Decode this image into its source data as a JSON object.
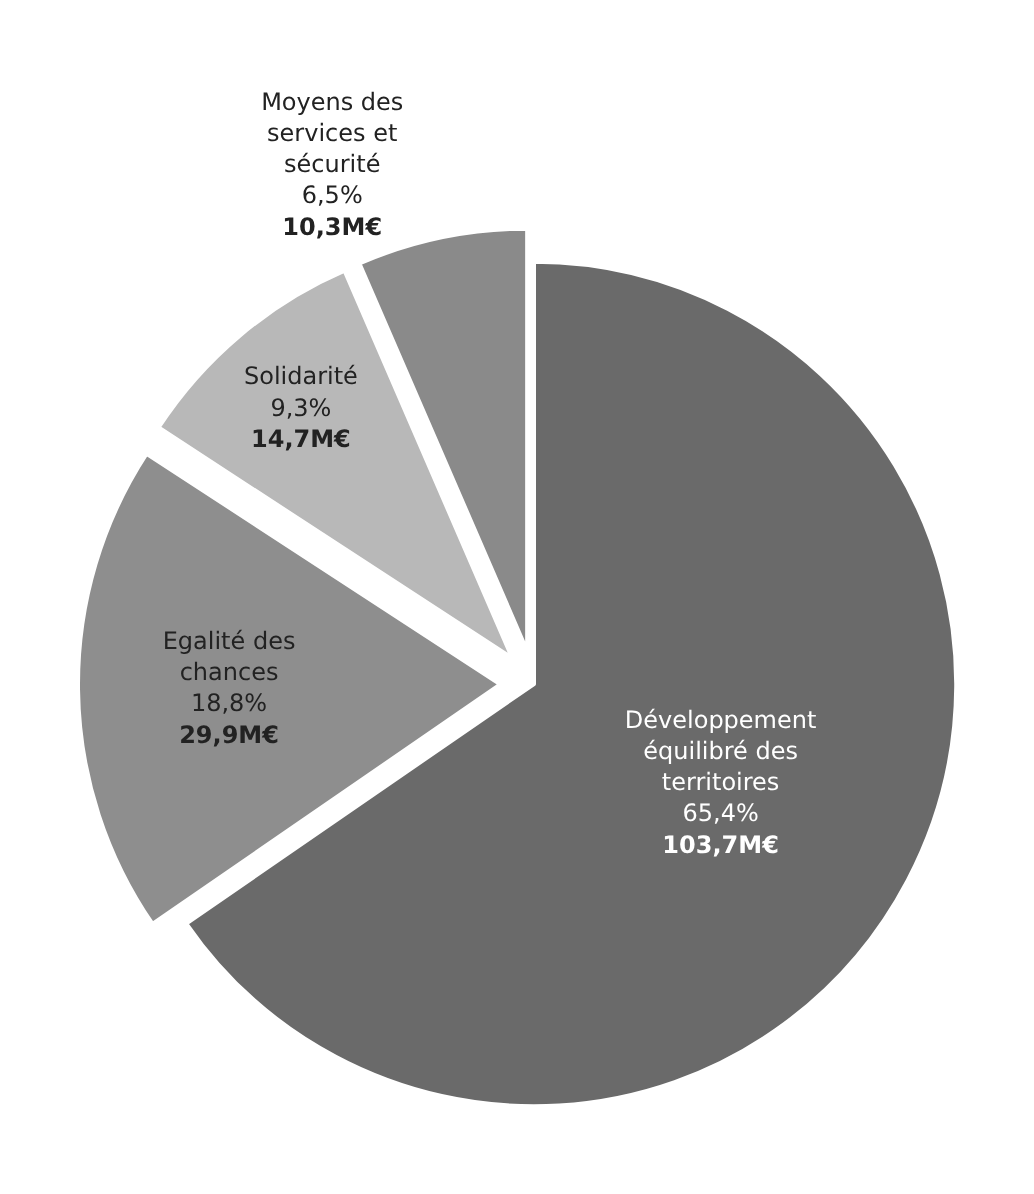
{
  "chart_data": {
    "type": "pie",
    "categories": [
      "Développement équilibré des territoires",
      "Egalité des chances",
      "Solidarité",
      "Moyens des services et sécurité"
    ],
    "values": [
      65.4,
      18.8,
      9.3,
      6.5
    ],
    "value_labels": [
      "65,4%\n103,7M€",
      "18,8%\n29,9M€",
      "9,3%\n14,7M€",
      "6,5%\n10,3M€"
    ],
    "colors": [
      "#6a6a6a",
      "#8e8e8e",
      "#b8b8b8",
      "#8a8a8a"
    ]
  }
}
